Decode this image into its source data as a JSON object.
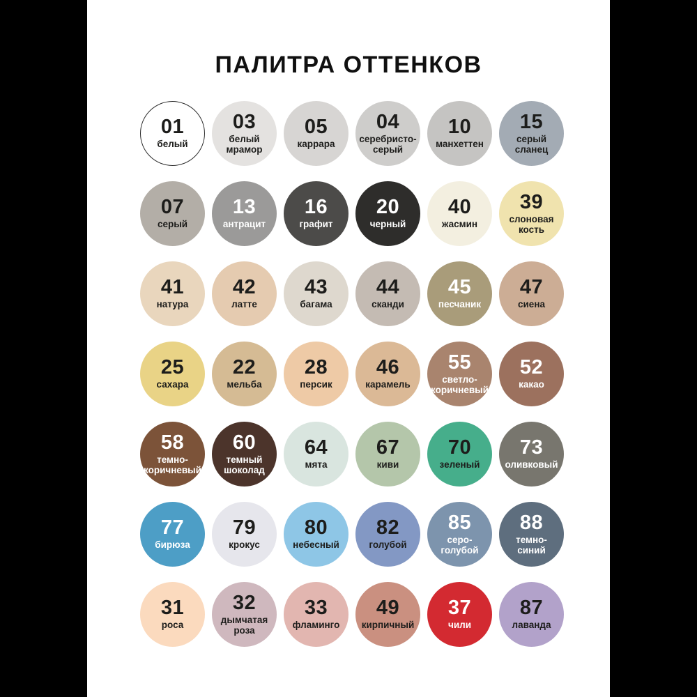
{
  "title": "ПАЛИТРА ОТТЕНКОВ",
  "colors": {
    "page_background": "#000000",
    "panel_background": "#ffffff",
    "title_text": "#101010"
  },
  "palette": {
    "columns": 6,
    "swatches": [
      {
        "code": "01",
        "name": "белый",
        "bg": "#ffffff",
        "text": "#1d1d1b",
        "border": "#2e2e2e"
      },
      {
        "code": "03",
        "name": "белый\nмрамор",
        "bg": "#e4e2e0",
        "text": "#1d1d1b"
      },
      {
        "code": "05",
        "name": "каррара",
        "bg": "#d7d5d3",
        "text": "#1d1d1b"
      },
      {
        "code": "04",
        "name": "серебристо-\nсерый",
        "bg": "#cecdcb",
        "text": "#1d1d1b"
      },
      {
        "code": "10",
        "name": "манхеттен",
        "bg": "#c5c4c2",
        "text": "#1d1d1b"
      },
      {
        "code": "15",
        "name": "серый\nсланец",
        "bg": "#a3abb4",
        "text": "#1d1d1b"
      },
      {
        "code": "07",
        "name": "серый",
        "bg": "#b3aea7",
        "text": "#1d1d1b"
      },
      {
        "code": "13",
        "name": "антрацит",
        "bg": "#9b9a99",
        "text": "#ffffff"
      },
      {
        "code": "16",
        "name": "графит",
        "bg": "#4c4b49",
        "text": "#ffffff"
      },
      {
        "code": "20",
        "name": "черный",
        "bg": "#2e2d2b",
        "text": "#ffffff"
      },
      {
        "code": "40",
        "name": "жасмин",
        "bg": "#f3efe0",
        "text": "#1d1d1b"
      },
      {
        "code": "39",
        "name": "слоновая\nкость",
        "bg": "#f0e3ae",
        "text": "#1d1d1b"
      },
      {
        "code": "41",
        "name": "натура",
        "bg": "#e9d6bd",
        "text": "#1d1d1b"
      },
      {
        "code": "42",
        "name": "латте",
        "bg": "#e5cbb0",
        "text": "#1d1d1b"
      },
      {
        "code": "43",
        "name": "багама",
        "bg": "#ded8ce",
        "text": "#1d1d1b"
      },
      {
        "code": "44",
        "name": "сканди",
        "bg": "#c4bbb3",
        "text": "#1d1d1b"
      },
      {
        "code": "45",
        "name": "песчаник",
        "bg": "#a99c7a",
        "text": "#ffffff"
      },
      {
        "code": "47",
        "name": "сиена",
        "bg": "#ccad95",
        "text": "#1d1d1b"
      },
      {
        "code": "25",
        "name": "сахара",
        "bg": "#e9d386",
        "text": "#1d1d1b"
      },
      {
        "code": "22",
        "name": "мельба",
        "bg": "#d5bb94",
        "text": "#1d1d1b"
      },
      {
        "code": "28",
        "name": "персик",
        "bg": "#eecaa6",
        "text": "#1d1d1b"
      },
      {
        "code": "46",
        "name": "карамель",
        "bg": "#dbb996",
        "text": "#1d1d1b"
      },
      {
        "code": "55",
        "name": "светло-\nкоричневый",
        "bg": "#a9846e",
        "text": "#ffffff"
      },
      {
        "code": "52",
        "name": "какао",
        "bg": "#9c715e",
        "text": "#ffffff"
      },
      {
        "code": "58",
        "name": "темно-\nкоричневый",
        "bg": "#7c5339",
        "text": "#ffffff"
      },
      {
        "code": "60",
        "name": "темный\nшоколад",
        "bg": "#4c342b",
        "text": "#ffffff"
      },
      {
        "code": "64",
        "name": "мята",
        "bg": "#d9e5df",
        "text": "#1d1d1b"
      },
      {
        "code": "67",
        "name": "киви",
        "bg": "#b4c6aa",
        "text": "#1d1d1b"
      },
      {
        "code": "70",
        "name": "зеленый",
        "bg": "#46ae8b",
        "text": "#1d1d1b"
      },
      {
        "code": "73",
        "name": "оливковый",
        "bg": "#78766e",
        "text": "#ffffff"
      },
      {
        "code": "77",
        "name": "бирюза",
        "bg": "#4d9ec6",
        "text": "#ffffff"
      },
      {
        "code": "79",
        "name": "крокус",
        "bg": "#e6e6ec",
        "text": "#1d1d1b"
      },
      {
        "code": "80",
        "name": "небесный",
        "bg": "#8ec6e6",
        "text": "#1d1d1b"
      },
      {
        "code": "82",
        "name": "голубой",
        "bg": "#8398c4",
        "text": "#1d1d1b"
      },
      {
        "code": "85",
        "name": "серо-\nголубой",
        "bg": "#7d94ad",
        "text": "#ffffff"
      },
      {
        "code": "88",
        "name": "темно-\nсиний",
        "bg": "#5e6e7e",
        "text": "#ffffff"
      },
      {
        "code": "31",
        "name": "роса",
        "bg": "#fbdabe",
        "text": "#1d1d1b"
      },
      {
        "code": "32",
        "name": "дымчатая\nроза",
        "bg": "#cfb8be",
        "text": "#1d1d1b"
      },
      {
        "code": "33",
        "name": "фламинго",
        "bg": "#e2b6b0",
        "text": "#1d1d1b"
      },
      {
        "code": "49",
        "name": "кирпичный",
        "bg": "#ca9080",
        "text": "#1d1d1b"
      },
      {
        "code": "37",
        "name": "чили",
        "bg": "#d32a31",
        "text": "#ffffff"
      },
      {
        "code": "87",
        "name": "лаванда",
        "bg": "#b2a2ca",
        "text": "#1d1d1b"
      }
    ]
  }
}
